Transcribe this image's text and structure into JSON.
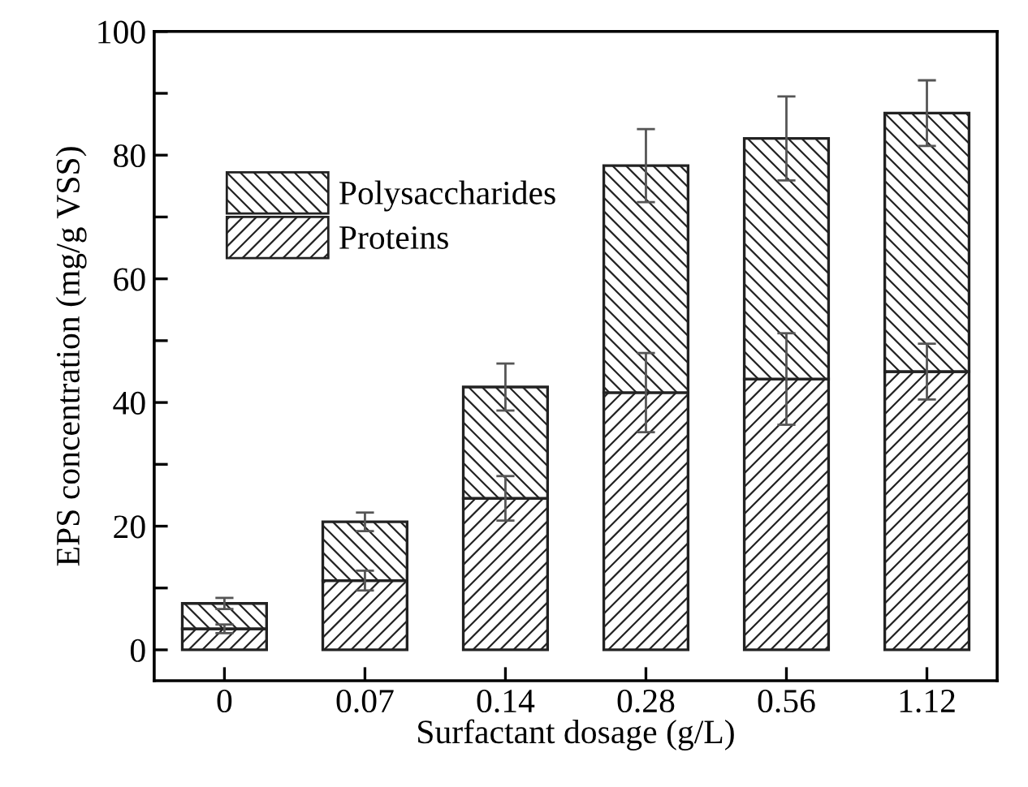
{
  "chart_data": {
    "type": "bar",
    "stacked": true,
    "xlabel": "Surfactant dosage (g/L)",
    "ylabel": "EPS concentration (mg/g VSS)",
    "categories": [
      "0",
      "0.07",
      "0.14",
      "0.28",
      "0.56",
      "1.12"
    ],
    "series": [
      {
        "name": "Proteins",
        "color": "#222222",
        "values": [
          3.4,
          11.2,
          24.5,
          41.6,
          43.8,
          45.0
        ],
        "errors": [
          0.7,
          1.6,
          3.6,
          6.4,
          7.4,
          4.5
        ]
      },
      {
        "name": "Polysaccharides",
        "color": "#222222",
        "values": [
          4.1,
          9.5,
          18.0,
          36.7,
          38.9,
          41.8
        ],
        "errors": [
          0.9,
          1.5,
          3.8,
          5.9,
          6.8,
          5.3
        ]
      }
    ],
    "ylim": [
      -5,
      100
    ],
    "yticks": [
      0,
      {
        "value": 10,
        "label": null
      },
      20,
      {
        "value": 30,
        "label": null
      },
      40,
      {
        "value": 50,
        "label": null
      },
      60,
      {
        "value": 70,
        "label": null
      },
      80,
      {
        "value": 90,
        "label": null
      },
      100
    ],
    "grid": false,
    "legend": "top left"
  }
}
